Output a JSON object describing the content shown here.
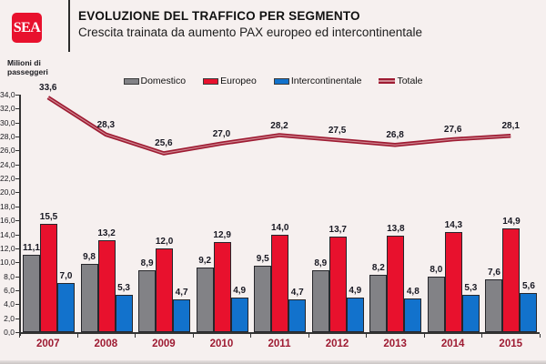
{
  "header": {
    "logo_text": "SEA",
    "title": "EVOLUZIONE DEL TRAFFICO PER SEGMENTO",
    "subtitle": "Crescita trainata da aumento PAX europeo ed intercontinentale"
  },
  "chart_data": {
    "type": "bar+line",
    "title": "EVOLUZIONE DEL TRAFFICO PER SEGMENTO",
    "subtitle": "Crescita trainata da aumento PAX europeo ed intercontinentale",
    "ylabel_line1": "Milioni di",
    "ylabel_line2": "passeggeri",
    "categories": [
      "2007",
      "2008",
      "2009",
      "2010",
      "2011",
      "2012",
      "2013",
      "2014",
      "2015"
    ],
    "series": [
      {
        "name": "Domestico",
        "kind": "bar",
        "color": "#828286",
        "values": [
          11.1,
          9.8,
          8.9,
          9.2,
          9.5,
          8.9,
          8.2,
          8.0,
          7.6
        ]
      },
      {
        "name": "Europeo",
        "kind": "bar",
        "color": "#e8112d",
        "values": [
          15.5,
          13.2,
          12.0,
          12.9,
          14.0,
          13.7,
          13.8,
          14.3,
          14.9
        ]
      },
      {
        "name": "Intercontinentale",
        "kind": "bar",
        "color": "#1272cc",
        "values": [
          7.0,
          5.3,
          4.7,
          4.9,
          4.7,
          4.9,
          4.8,
          5.3,
          5.6
        ]
      },
      {
        "name": "Totale",
        "kind": "line",
        "color": "#9e1b32",
        "values": [
          33.6,
          28.3,
          25.6,
          27.0,
          28.2,
          27.5,
          26.8,
          27.6,
          28.1
        ]
      }
    ],
    "ylim": [
      0,
      34
    ],
    "ytick_step": 2,
    "decimal_separator": ",",
    "grid": "off",
    "legend_position": "top-center",
    "colors": {
      "background": "#f6f0ef",
      "brand_red": "#e8112d",
      "line_dark_red": "#9e1b32",
      "line_inner": "#cf8892",
      "axis": "#333333",
      "year_label": "#9e1b32",
      "value_label": "#181822"
    }
  }
}
